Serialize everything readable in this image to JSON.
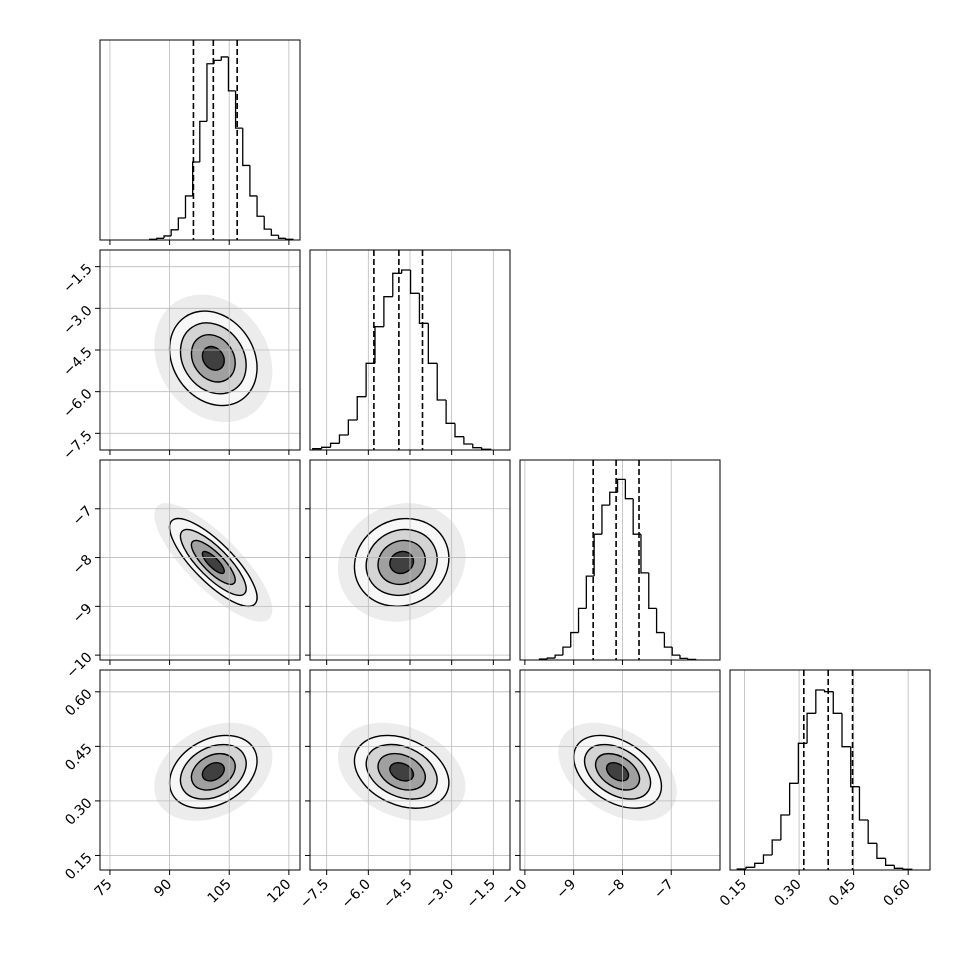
{
  "chart_data": {
    "type": "corner",
    "grid": true,
    "parameters": [
      {
        "lim": [
          72.5,
          122.8
        ],
        "ticks": [
          75,
          90,
          105,
          120
        ],
        "mean": 101,
        "std": 5.5,
        "quantiles": [
          96,
          101,
          107
        ],
        "bins": [
          85,
          86.8,
          88.6,
          90.4,
          92.2,
          94,
          95.8,
          97.6,
          99.4,
          101.2,
          103,
          104.8,
          106.6,
          108.4,
          110.2,
          112,
          113.8,
          115.6,
          117.4,
          119.2,
          121
        ],
        "counts": [
          2,
          5,
          12,
          30,
          65,
          130,
          230,
          350,
          520,
          530,
          540,
          440,
          330,
          220,
          130,
          70,
          32,
          14,
          5,
          2
        ],
        "count_lim": [
          0,
          590
        ]
      },
      {
        "lim": [
          -8.1,
          -0.9
        ],
        "ticks": [
          {
            "value": -7.5,
            "label": "−7.5"
          },
          {
            "value": -6.0,
            "label": "−6.0"
          },
          {
            "value": -4.5,
            "label": "−4.5"
          },
          {
            "value": -3.0,
            "label": "−3.0"
          },
          {
            "value": -1.5,
            "label": "−1.5"
          }
        ],
        "mean": -4.8,
        "std": 0.85,
        "quantiles": [
          -5.8,
          -4.9,
          -4.05
        ],
        "bins": [
          -8.0,
          -7.68,
          -7.36,
          -7.04,
          -6.72,
          -6.4,
          -6.08,
          -5.76,
          -5.44,
          -5.12,
          -4.8,
          -4.48,
          -4.16,
          -3.84,
          -3.52,
          -3.2,
          -2.88,
          -2.56,
          -2.24,
          -1.92,
          -1.6
        ],
        "counts": [
          4,
          8,
          20,
          45,
          90,
          160,
          260,
          370,
          460,
          530,
          540,
          470,
          380,
          260,
          150,
          80,
          40,
          18,
          7,
          2
        ],
        "count_lim": [
          0,
          600
        ]
      },
      {
        "lim": [
          -10.1,
          -6.0
        ],
        "ticks": [
          {
            "value": -10,
            "label": "−10"
          },
          {
            "value": -9,
            "label": "−9"
          },
          {
            "value": -8,
            "label": "−8"
          },
          {
            "value": -7,
            "label": "−7"
          }
        ],
        "mean": -8.1,
        "std": 0.45,
        "quantiles": [
          -8.6,
          -8.13,
          -7.66
        ],
        "bins": [
          -9.7,
          -9.54,
          -9.38,
          -9.22,
          -9.06,
          -8.9,
          -8.74,
          -8.58,
          -8.42,
          -8.26,
          -8.1,
          -7.94,
          -7.78,
          -7.62,
          -7.46,
          -7.3,
          -7.14,
          -6.98,
          -6.82,
          -6.66,
          -6.5
        ],
        "counts": [
          3,
          6,
          15,
          40,
          85,
          160,
          260,
          390,
          480,
          520,
          560,
          500,
          390,
          270,
          160,
          85,
          40,
          15,
          5,
          2
        ],
        "count_lim": [
          0,
          620
        ]
      },
      {
        "lim": [
          0.11,
          0.66
        ],
        "ticks": [
          0.15,
          {
            "value": 0.3,
            "label": "0.30"
          },
          0.45,
          {
            "value": 0.6,
            "label": "0.60"
          }
        ],
        "mean": 0.38,
        "std": 0.05,
        "quantiles": [
          0.313,
          0.38,
          0.447
        ],
        "bins": [
          0.13,
          0.154,
          0.178,
          0.202,
          0.226,
          0.25,
          0.274,
          0.298,
          0.322,
          0.346,
          0.37,
          0.394,
          0.418,
          0.442,
          0.466,
          0.49,
          0.514,
          0.538,
          0.562,
          0.586,
          0.61
        ],
        "counts": [
          3,
          8,
          20,
          45,
          90,
          165,
          260,
          380,
          470,
          540,
          535,
          470,
          370,
          250,
          150,
          80,
          35,
          14,
          5,
          2
        ],
        "count_lim": [
          0,
          600
        ]
      }
    ],
    "pairs": [
      {
        "x": 0,
        "y": 1,
        "corr": -0.2
      },
      {
        "x": 0,
        "y": 2,
        "corr": -0.8
      },
      {
        "x": 1,
        "y": 2,
        "corr": 0.1
      },
      {
        "x": 0,
        "y": 3,
        "corr": 0.3
      },
      {
        "x": 1,
        "y": 3,
        "corr": -0.3
      },
      {
        "x": 2,
        "y": 3,
        "corr": -0.4
      }
    ]
  }
}
